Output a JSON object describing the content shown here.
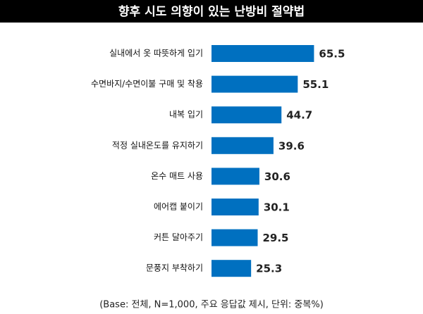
{
  "chart_data": {
    "type": "bar",
    "orientation": "horizontal",
    "title": "향후 시도 의향이 있는 난방비 절약법",
    "categories": [
      "실내에서 옷 따뜻하게 입기",
      "수면바지/수면이불 구매 및 착용",
      "내복 입기",
      "적정 실내온도를 유지하기",
      "온수 매트 사용",
      "에어캡 붙이기",
      "커튼 달아주기",
      "문풍지 부착하기"
    ],
    "values": [
      65.5,
      55.1,
      44.7,
      39.6,
      30.6,
      30.1,
      29.5,
      25.3
    ],
    "color": "#0070c0",
    "note": "(Base: 전체, N=1,000, 주요 응답값 제시, 단위: 중복%)"
  }
}
